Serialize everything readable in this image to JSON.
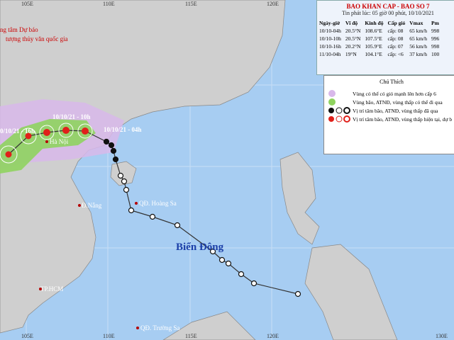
{
  "header": {
    "title": "BAO KHAN CAP - BAO SO 7",
    "subtitle": "Tin phát lúc: 05 giờ 00 phút, 10/10/2021"
  },
  "table": {
    "columns": [
      "Ngày-giờ",
      "Vĩ độ",
      "Kinh độ",
      "Cấp gió",
      "Vmax",
      "Pm"
    ],
    "rows": [
      [
        "10/10-04h",
        "20.5°N",
        "108.6°E",
        "cấp: 08",
        "65 km/h",
        "998"
      ],
      [
        "10/10-10h",
        "20.5°N",
        "107.5°E",
        "cấp: 08",
        "65 km/h",
        "996"
      ],
      [
        "10/10-16h",
        "20.2°N",
        "105.9°E",
        "cấp: 07",
        "56 km/h",
        "998"
      ],
      [
        "11/10-04h",
        "19°N",
        "104.1°E",
        "cấp: <6",
        "37 km/h",
        "100"
      ]
    ]
  },
  "legend": {
    "title": "Chú Thích",
    "items": [
      "Vùng có thể có gió mạnh lên hơn cấp 6",
      "Vùng bão, ATNĐ, vùng thấp có thể đi qua",
      "Vị trí tâm bão, ATNĐ, vùng thấp đã qua",
      "Vị trí tâm bão, ATNĐ, vùng thấp hiện tại, dự b"
    ]
  },
  "agency": [
    "ng tâm Dự báo",
    "tượng thủy văn quốc gia"
  ],
  "times": [
    "10/10/21 - 10h",
    "0/10/21 - 16h",
    "10/10/21 - 04h"
  ],
  "places": [
    "Hà Nội",
    "Đ.Nẵng",
    "QĐ. Hoàng Sa",
    "Biển Đông",
    "TP.HCM",
    "QĐ. Trường Sa"
  ],
  "longitudes": {
    "top": [
      "105E",
      "110E",
      "115E",
      "120E"
    ],
    "bottom": [
      "105E",
      "110E",
      "115E",
      "120E",
      "130E"
    ]
  }
}
